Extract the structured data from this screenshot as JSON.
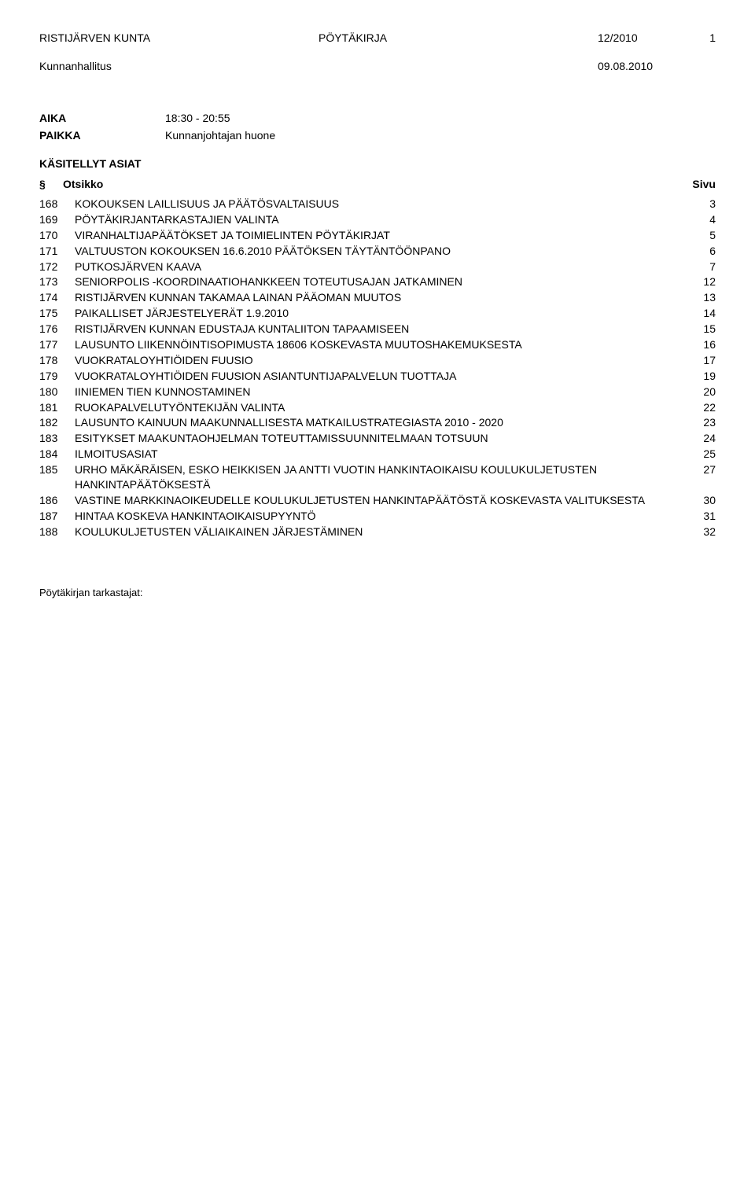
{
  "header": {
    "org": "RISTIJÄRVEN KUNTA",
    "doc_type": "PÖYTÄKIRJA",
    "doc_num": "12/2010",
    "page_num": "1"
  },
  "subheader": {
    "body": "Kunnanhallitus",
    "date": "09.08.2010"
  },
  "meta": {
    "aika_label": "AIKA",
    "aika_value": "18:30 - 20:55",
    "paikka_label": "PAIKKA",
    "paikka_value": "Kunnanjohtajan huone"
  },
  "toc": {
    "section_title": "KÄSITELLYT ASIAT",
    "header_sym": "§",
    "header_title": "Otsikko",
    "header_page": "Sivu",
    "items": [
      {
        "num": "168",
        "title": "KOKOUKSEN LAILLISUUS JA PÄÄTÖSVALTAISUUS",
        "page": "3"
      },
      {
        "num": "169",
        "title": "PÖYTÄKIRJANTARKASTAJIEN VALINTA",
        "page": "4"
      },
      {
        "num": "170",
        "title": "VIRANHALTIJAPÄÄTÖKSET JA TOIMIELINTEN PÖYTÄKIRJAT",
        "page": "5"
      },
      {
        "num": "171",
        "title": "VALTUUSTON KOKOUKSEN 16.6.2010 PÄÄTÖKSEN TÄYTÄNTÖÖNPANO",
        "page": "6"
      },
      {
        "num": "172",
        "title": "PUTKOSJÄRVEN KAAVA",
        "page": "7"
      },
      {
        "num": "173",
        "title": "SENIORPOLIS -KOORDINAATIOHANKKEEN TOTEUTUSAJAN JATKAMINEN",
        "page": "12"
      },
      {
        "num": "174",
        "title": "RISTIJÄRVEN KUNNAN TAKAMAA LAINAN PÄÄOMAN MUUTOS",
        "page": "13"
      },
      {
        "num": "175",
        "title": "PAIKALLISET JÄRJESTELYERÄT 1.9.2010",
        "page": "14"
      },
      {
        "num": "176",
        "title": "RISTIJÄRVEN KUNNAN EDUSTAJA KUNTALIITON TAPAAMISEEN",
        "page": "15"
      },
      {
        "num": "177",
        "title": "LAUSUNTO LIIKENNÖINTISOPIMUSTA 18606 KOSKEVASTA MUUTOSHAKEMUKSESTA",
        "page": "16"
      },
      {
        "num": "178",
        "title": "VUOKRATALOYHTIÖIDEN FUUSIO",
        "page": "17"
      },
      {
        "num": "179",
        "title": "VUOKRATALOYHTIÖIDEN FUUSION ASIANTUNTIJAPALVELUN TUOTTAJA",
        "page": "19"
      },
      {
        "num": "180",
        "title": "IINIEMEN TIEN KUNNOSTAMINEN",
        "page": "20"
      },
      {
        "num": "181",
        "title": "RUOKAPALVELUTYÖNTEKIJÄN  VALINTA",
        "page": "22"
      },
      {
        "num": "182",
        "title": "LAUSUNTO KAINUUN MAAKUNNALLISESTA MATKAILUSTRATEGIASTA 2010 - 2020",
        "page": "23"
      },
      {
        "num": "183",
        "title": "ESITYKSET MAAKUNTAOHJELMAN TOTEUTTAMISSUUNNITELMAAN TOTSUUN",
        "page": "24"
      },
      {
        "num": "184",
        "title": "ILMOITUSASIAT",
        "page": "25"
      },
      {
        "num": "185",
        "title": "URHO MÄKÄRÄISEN, ESKO HEIKKISEN JA ANTTI VUOTIN HANKINTAOIKAISU KOULUKULJETUSTEN HANKINTAPÄÄTÖKSESTÄ",
        "page": "27"
      },
      {
        "num": "186",
        "title": "VASTINE MARKKINAOIKEUDELLE KOULUKULJETUSTEN HANKINTAPÄÄTÖSTÄ KOSKEVASTA VALITUKSESTA",
        "page": "30"
      },
      {
        "num": "187",
        "title": "HINTAA KOSKEVA HANKINTAOIKAISUPYYNTÖ",
        "page": "31"
      },
      {
        "num": "188",
        "title": "KOULUKULJETUSTEN VÄLIAIKAINEN JÄRJESTÄMINEN",
        "page": "32"
      }
    ]
  },
  "footer": {
    "text": "Pöytäkirjan tarkastajat:"
  }
}
